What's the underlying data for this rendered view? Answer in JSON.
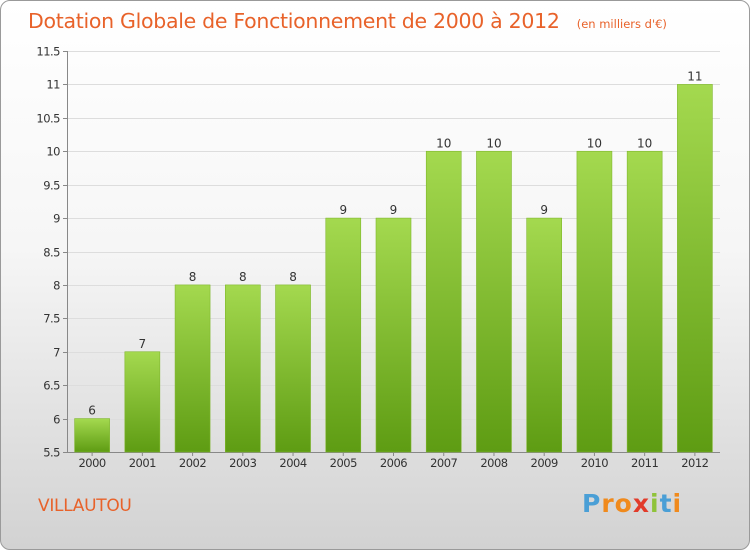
{
  "colors": {
    "title": "#e8622a",
    "bar_top": "#a4d94f",
    "bar_bottom": "#5e9c13",
    "axis_text": "#333333",
    "gridline": "#dddddd"
  },
  "commune": "VILLAUTOU",
  "brand": {
    "letters": [
      {
        "ch": "P",
        "color": "#4a9fd6"
      },
      {
        "ch": "r",
        "color": "#f08a1c"
      },
      {
        "ch": "o",
        "color": "#f08a1c"
      },
      {
        "ch": "x",
        "color": "#e23b2a"
      },
      {
        "ch": "i",
        "color": "#8fc33a"
      },
      {
        "ch": "t",
        "color": "#4a9fd6"
      },
      {
        "ch": "i",
        "color": "#f08a1c"
      }
    ]
  },
  "chart_data": {
    "type": "bar",
    "title": "Dotation Globale de Fonctionnement de 2000 à 2012",
    "subtitle": "(en milliers d'€)",
    "categories": [
      "2000",
      "2001",
      "2002",
      "2003",
      "2004",
      "2005",
      "2006",
      "2007",
      "2008",
      "2009",
      "2010",
      "2011",
      "2012"
    ],
    "values": [
      6,
      7,
      8,
      8,
      8,
      9,
      9,
      10,
      10,
      9,
      10,
      10,
      11
    ],
    "value_labels": [
      "6",
      "7",
      "8",
      "8",
      "8",
      "9",
      "9",
      "10",
      "10",
      "9",
      "10",
      "10",
      "11"
    ],
    "yticks": [
      5.5,
      6,
      6.5,
      7,
      7.5,
      8,
      8.5,
      9,
      9.5,
      10,
      10.5,
      11,
      11.5
    ],
    "ytick_labels": [
      "5.5",
      "6",
      "6.5",
      "7",
      "7.5",
      "8",
      "8.5",
      "9",
      "9.5",
      "10",
      "10.5",
      "11",
      "11.5"
    ],
    "ylim": [
      5.5,
      11.5
    ],
    "xlabel": "",
    "ylabel": "",
    "grid": true
  }
}
